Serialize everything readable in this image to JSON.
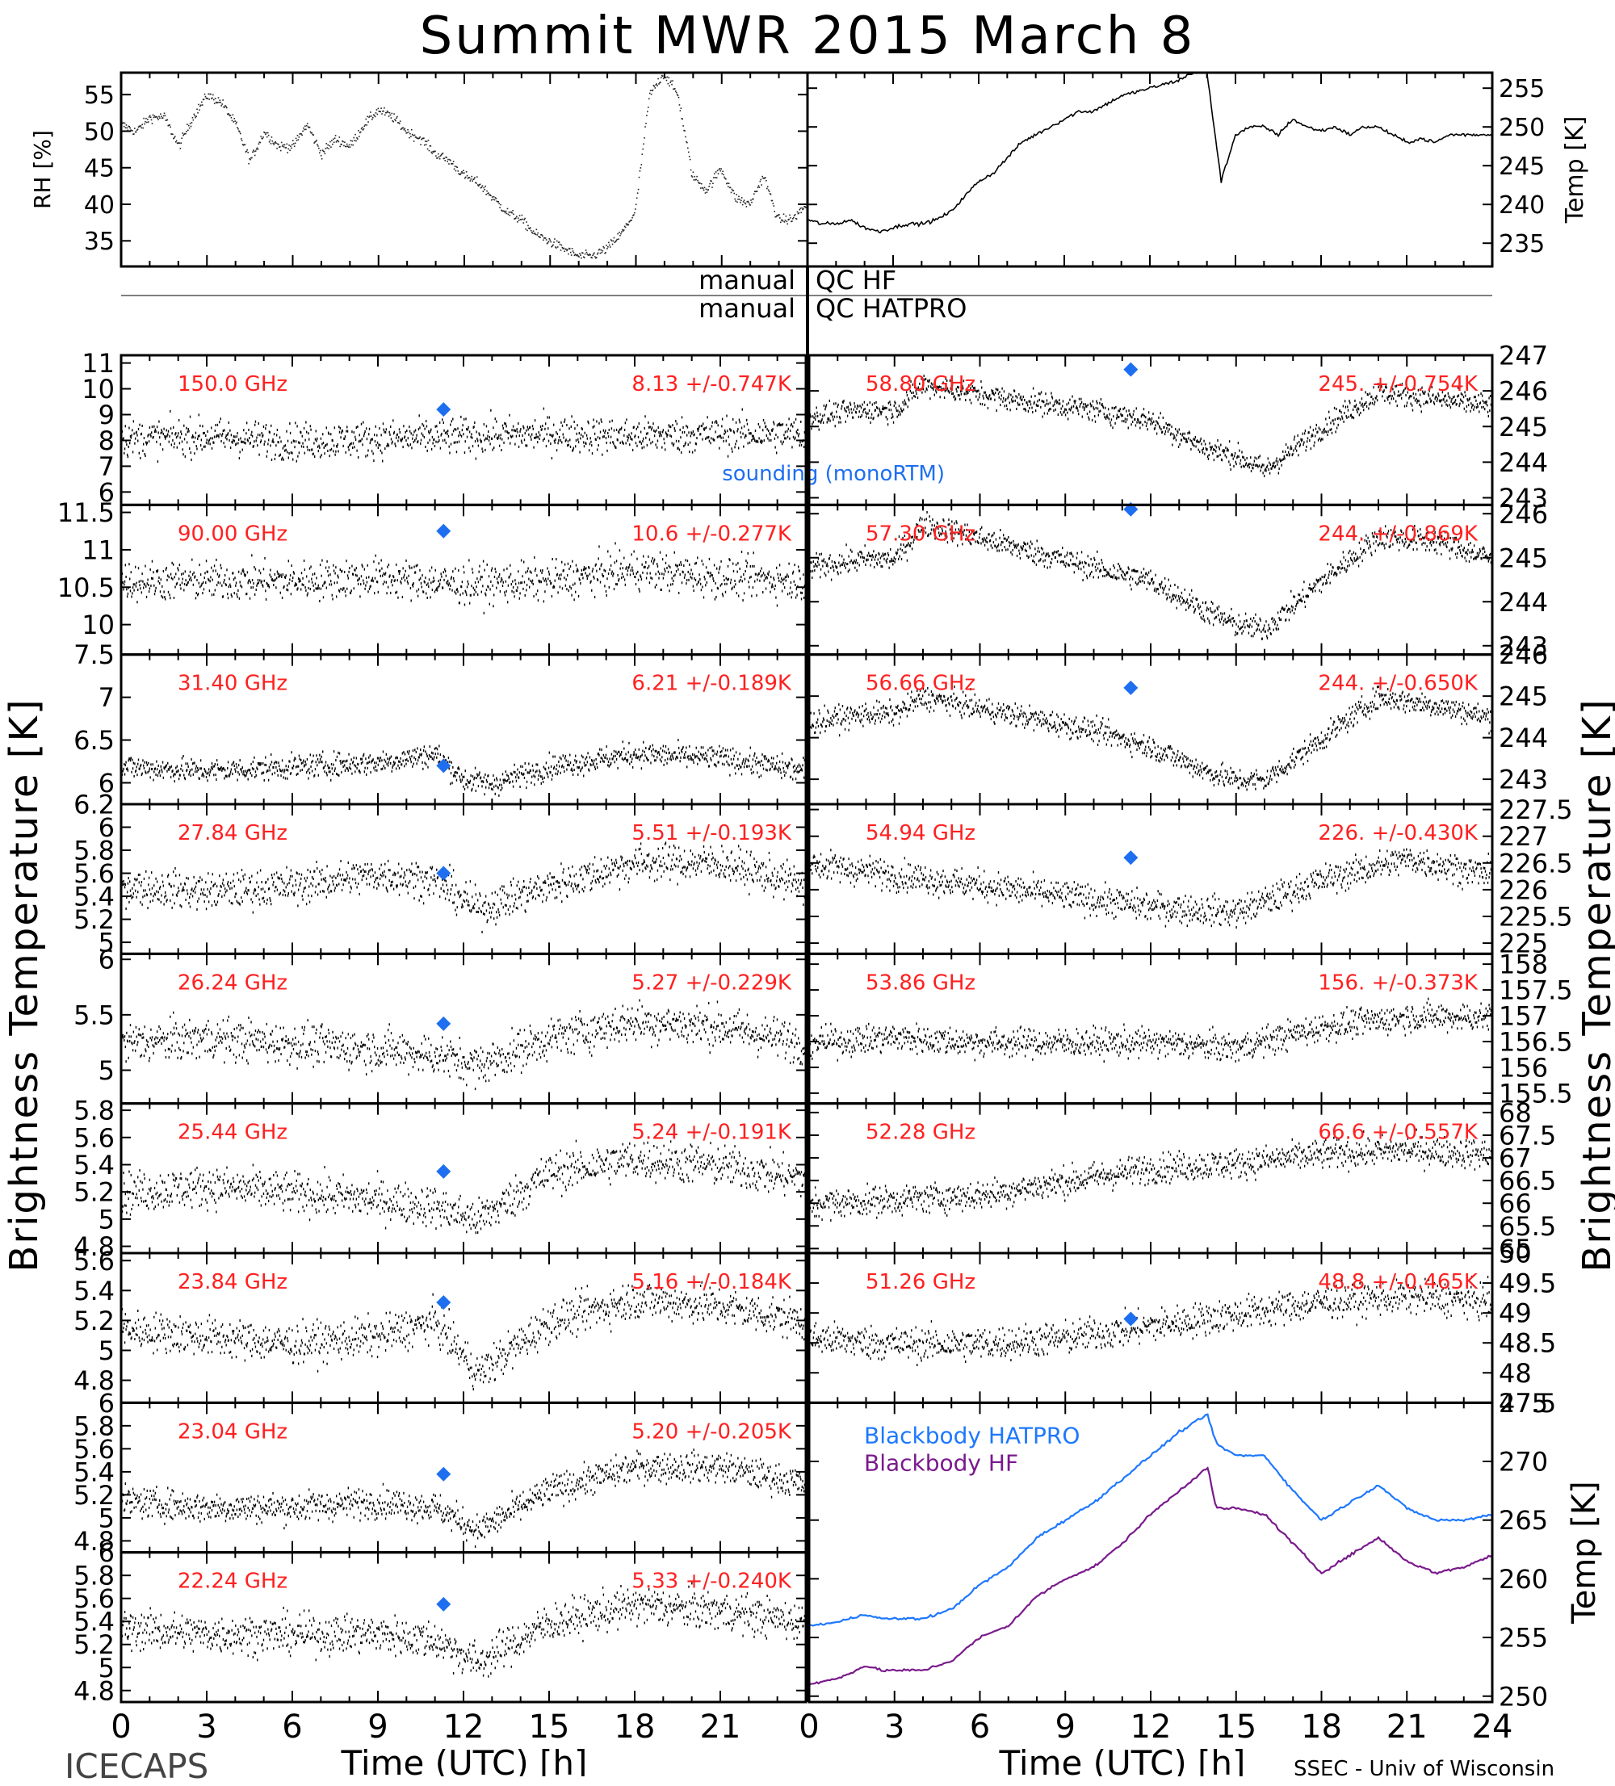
{
  "page": {
    "title": "Summit MWR 2015 March  8",
    "footer_left": "ICECAPS",
    "footer_right": "SSEC - Univ of Wisconsin",
    "qc_left": "manual",
    "qc_right_hf": "QC HF",
    "qc_right_hatpro": "QC HATPRO",
    "left_ylabel": "Brightness Temperature [K]",
    "right_ylabel": "Brightness Temperature [K]",
    "xlabel": "Time (UTC) [h]",
    "sounding_label": "sounding (monoRTM)",
    "colors": {
      "data": "#000000",
      "label": "#ff2020",
      "sounding": "#1e6ff0",
      "bb_hatpro": "#1e78ff",
      "bb_hf": "#7a1a8c"
    }
  },
  "chart_data": [
    {
      "type": "line",
      "panel": "rh",
      "ylabel": "RH [%]",
      "ylim": [
        31.5,
        58
      ],
      "yticks": [
        35,
        40,
        45,
        50,
        55
      ],
      "xlim": [
        0,
        24
      ],
      "x": [
        0,
        0.5,
        1,
        1.5,
        2,
        2.5,
        3,
        3.5,
        4,
        4.5,
        5,
        5.5,
        6,
        6.5,
        7,
        7.5,
        8,
        8.5,
        9,
        9.5,
        10,
        10.5,
        11,
        11.5,
        12,
        12.5,
        13,
        13.5,
        14,
        14.5,
        15,
        15.5,
        16,
        16.5,
        17,
        17.5,
        18,
        18.5,
        19,
        19.5,
        20,
        20.5,
        21,
        21.5,
        22,
        22.5,
        23,
        23.5,
        24
      ],
      "y": [
        51,
        50,
        52,
        52,
        48,
        52,
        55,
        54,
        51,
        46,
        50,
        48,
        48,
        51,
        47,
        49,
        48,
        51,
        53,
        52,
        50,
        49,
        47,
        46,
        44,
        43,
        41,
        39,
        38,
        36,
        35,
        34,
        33,
        33,
        34,
        36,
        39,
        55,
        58,
        55,
        44,
        42,
        45,
        41,
        40,
        44,
        38,
        38,
        40
      ]
    },
    {
      "type": "line",
      "panel": "temp",
      "ylabel": "Temp [K]",
      "ylim": [
        232,
        257
      ],
      "yticks": [
        235,
        240,
        245,
        250,
        255
      ],
      "xlim": [
        0,
        24
      ],
      "x": [
        0,
        0.5,
        1,
        1.5,
        2,
        2.5,
        3,
        3.5,
        4,
        4.5,
        5,
        5.5,
        6,
        6.5,
        7,
        7.5,
        8,
        8.5,
        9,
        9.5,
        10,
        10.5,
        11,
        11.5,
        12,
        12.5,
        13,
        13.5,
        14,
        14.5,
        15,
        15.5,
        16,
        16.5,
        17,
        17.5,
        18,
        18.5,
        19,
        19.5,
        20,
        20.5,
        21,
        21.5,
        22,
        22.5,
        23,
        23.5,
        24
      ],
      "y": [
        238,
        237.5,
        237.5,
        238,
        237,
        236.5,
        237,
        237.5,
        237.5,
        238,
        239,
        241,
        243,
        244,
        246,
        248,
        249,
        250,
        251,
        252,
        252,
        253,
        254,
        254.5,
        255,
        255.5,
        256,
        257,
        257,
        243,
        249,
        250,
        250,
        249,
        251,
        250,
        249.5,
        250,
        249,
        250,
        250,
        249,
        248,
        248.5,
        248,
        249,
        249,
        249,
        249
      ]
    },
    {
      "type": "scatter",
      "panel": "150.0",
      "freq_label": "150.0 GHz",
      "stats": "8.13 +/-0.747K",
      "ylim": [
        5.5,
        11.3
      ],
      "yticks": [
        6,
        7,
        8,
        9,
        10,
        11
      ],
      "sounding": [
        11.3,
        9.2
      ],
      "noise": 0.75,
      "x": [
        0,
        3,
        6,
        9,
        12,
        15,
        18,
        21,
        24
      ],
      "y": [
        8.1,
        8.2,
        8.0,
        8.1,
        8.2,
        8.3,
        8.2,
        8.3,
        8.3
      ]
    },
    {
      "type": "scatter",
      "panel": "90.00",
      "freq_label": "90.00 GHz",
      "stats": "10.6 +/-0.277K",
      "ylim": [
        9.6,
        11.6
      ],
      "yticks": [
        10.0,
        10.5,
        11.0,
        11.5
      ],
      "sounding": [
        11.3,
        11.25
      ],
      "noise": 0.28,
      "x": [
        0,
        3,
        6,
        9,
        12,
        15,
        18,
        21,
        24
      ],
      "y": [
        10.6,
        10.6,
        10.6,
        10.65,
        10.55,
        10.6,
        10.75,
        10.65,
        10.6
      ]
    },
    {
      "type": "scatter",
      "panel": "31.40",
      "freq_label": "31.40 GHz",
      "stats": "6.21 +/-0.189K",
      "ylim": [
        5.75,
        7.5
      ],
      "yticks": [
        6.0,
        6.5,
        7.0,
        7.5
      ],
      "sounding": [
        11.3,
        6.2
      ],
      "noise": 0.15,
      "x": [
        0,
        3,
        6,
        9,
        11,
        12,
        13,
        15,
        18,
        21,
        24
      ],
      "y": [
        6.2,
        6.15,
        6.2,
        6.25,
        6.35,
        6.05,
        6.0,
        6.2,
        6.35,
        6.3,
        6.15
      ]
    },
    {
      "type": "scatter",
      "panel": "27.84",
      "freq_label": "27.84 GHz",
      "stats": "5.51 +/-0.193K",
      "ylim": [
        4.9,
        6.2
      ],
      "yticks": [
        5.0,
        5.2,
        5.4,
        5.6,
        5.8,
        6.0,
        6.2
      ],
      "sounding": [
        11.3,
        5.6
      ],
      "noise": 0.17,
      "x": [
        0,
        3,
        6,
        9,
        11,
        12.5,
        15,
        18,
        21,
        24
      ],
      "y": [
        5.5,
        5.45,
        5.5,
        5.6,
        5.55,
        5.3,
        5.5,
        5.7,
        5.7,
        5.5
      ]
    },
    {
      "type": "scatter",
      "panel": "26.24",
      "freq_label": "26.24 GHz",
      "stats": "5.27 +/-0.229K",
      "ylim": [
        4.7,
        6.05
      ],
      "yticks": [
        5.0,
        5.5,
        6.0
      ],
      "sounding": [
        11.3,
        5.42
      ],
      "noise": 0.2,
      "x": [
        0,
        3,
        6,
        9,
        11,
        12.5,
        15,
        18,
        21,
        24
      ],
      "y": [
        5.25,
        5.3,
        5.25,
        5.2,
        5.15,
        5.05,
        5.3,
        5.45,
        5.4,
        5.25
      ]
    },
    {
      "type": "scatter",
      "panel": "25.44",
      "freq_label": "25.44 GHz",
      "stats": "5.24 +/-0.191K",
      "ylim": [
        4.75,
        5.85
      ],
      "yticks": [
        4.8,
        5.0,
        5.2,
        5.4,
        5.6,
        5.8
      ],
      "sounding": [
        11.3,
        5.35
      ],
      "noise": 0.16,
      "x": [
        0,
        3,
        6,
        9,
        11,
        12.5,
        15,
        18,
        21,
        24
      ],
      "y": [
        5.2,
        5.25,
        5.2,
        5.15,
        5.1,
        5.0,
        5.35,
        5.45,
        5.4,
        5.3
      ]
    },
    {
      "type": "scatter",
      "panel": "23.84",
      "freq_label": "23.84 GHz",
      "stats": "5.16 +/-0.184K",
      "ylim": [
        4.65,
        5.65
      ],
      "yticks": [
        4.8,
        5.0,
        5.2,
        5.4,
        5.6
      ],
      "sounding": [
        11.3,
        5.32
      ],
      "noise": 0.14,
      "x": [
        0,
        3,
        6,
        9,
        11,
        12.5,
        15,
        18,
        21,
        24
      ],
      "y": [
        5.15,
        5.1,
        5.05,
        5.1,
        5.2,
        4.85,
        5.2,
        5.35,
        5.3,
        5.2
      ]
    },
    {
      "type": "scatter",
      "panel": "23.04",
      "freq_label": "23.04 GHz",
      "stats": "5.20 +/-0.205K",
      "ylim": [
        4.7,
        6.0
      ],
      "yticks": [
        4.8,
        5.0,
        5.2,
        5.4,
        5.6,
        5.8,
        6.0
      ],
      "sounding": [
        11.3,
        5.38
      ],
      "noise": 0.14,
      "x": [
        0,
        3,
        6,
        9,
        11,
        12.5,
        15,
        18,
        21,
        24
      ],
      "y": [
        5.15,
        5.1,
        5.1,
        5.15,
        5.1,
        4.9,
        5.25,
        5.45,
        5.45,
        5.3
      ]
    },
    {
      "type": "scatter",
      "panel": "22.24",
      "freq_label": "22.24 GHz",
      "stats": "5.33 +/-0.240K",
      "ylim": [
        4.7,
        6.0
      ],
      "yticks": [
        4.8,
        5.0,
        5.2,
        5.4,
        5.6,
        5.8,
        6.0
      ],
      "sounding": [
        11.3,
        5.55
      ],
      "noise": 0.18,
      "x": [
        0,
        3,
        6,
        9,
        11,
        12.5,
        15,
        18,
        21,
        24
      ],
      "y": [
        5.35,
        5.3,
        5.3,
        5.3,
        5.25,
        5.05,
        5.4,
        5.55,
        5.5,
        5.4
      ]
    },
    {
      "type": "scatter",
      "panel": "58.80",
      "freq_label": "58.80 GHz",
      "stats": "245. +/-0.754K",
      "ylim": [
        242.8,
        247
      ],
      "yticks": [
        243,
        244,
        245,
        246,
        247
      ],
      "sounding": [
        11.3,
        246.6
      ],
      "noise": 0.35,
      "x": [
        0,
        2,
        3,
        4,
        7,
        10,
        12,
        14,
        15,
        16,
        18,
        20,
        22,
        24
      ],
      "y": [
        245.3,
        245.5,
        245.5,
        246.2,
        245.8,
        245.5,
        245.2,
        244.4,
        244.2,
        243.8,
        245.0,
        246.0,
        245.8,
        245.6
      ]
    },
    {
      "type": "scatter",
      "panel": "57.30",
      "freq_label": "57.30 GHz",
      "stats": "244. +/-0.869K",
      "ylim": [
        242.8,
        246.2
      ],
      "yticks": [
        243,
        244,
        245,
        246
      ],
      "sounding": [
        11.3,
        246.1
      ],
      "noise": 0.3,
      "x": [
        0,
        2,
        3,
        4,
        7,
        10,
        12,
        14,
        15,
        16,
        18,
        20,
        22,
        24
      ],
      "y": [
        244.8,
        245.0,
        245.0,
        245.8,
        245.3,
        244.8,
        244.5,
        243.8,
        243.5,
        243.4,
        244.5,
        245.5,
        245.4,
        245.0
      ]
    },
    {
      "type": "scatter",
      "panel": "56.66",
      "freq_label": "56.66 GHz",
      "stats": "244. +/-0.650K",
      "ylim": [
        242.4,
        246
      ],
      "yticks": [
        243,
        244,
        245,
        246
      ],
      "sounding": [
        11.3,
        245.2
      ],
      "noise": 0.3,
      "x": [
        0,
        2,
        3,
        4,
        7,
        10,
        12,
        14,
        15,
        16,
        18,
        20,
        22,
        24
      ],
      "y": [
        244.4,
        244.6,
        244.6,
        245.0,
        244.6,
        244.2,
        243.8,
        243.2,
        243.0,
        243.0,
        244.0,
        245.0,
        244.8,
        244.5
      ]
    },
    {
      "type": "scatter",
      "panel": "54.94",
      "freq_label": "54.94 GHz",
      "stats": "226. +/-0.430K",
      "ylim": [
        224.8,
        227.6
      ],
      "yticks": [
        225.0,
        225.5,
        226.0,
        226.5,
        227.0,
        227.5
      ],
      "sounding": [
        11.3,
        226.6
      ],
      "noise": 0.3,
      "x": [
        0,
        3,
        6,
        9,
        12,
        15,
        18,
        21,
        24
      ],
      "y": [
        226.5,
        226.3,
        226.1,
        225.9,
        225.7,
        225.6,
        226.2,
        226.6,
        226.3
      ]
    },
    {
      "type": "scatter",
      "panel": "53.86",
      "freq_label": "53.86 GHz",
      "stats": "156. +/-0.373K",
      "ylim": [
        155.3,
        158.2
      ],
      "yticks": [
        155.5,
        156.0,
        156.5,
        157.0,
        157.5,
        158.0
      ],
      "sounding": null,
      "noise": 0.3,
      "x": [
        0,
        3,
        6,
        9,
        12,
        15,
        18,
        21,
        24
      ],
      "y": [
        156.5,
        156.6,
        156.5,
        156.5,
        156.5,
        156.4,
        156.8,
        157.0,
        157.0
      ]
    },
    {
      "type": "scatter",
      "panel": "52.28",
      "freq_label": "52.28 GHz",
      "stats": "66.6 +/-0.557K",
      "ylim": [
        64.9,
        68.2
      ],
      "yticks": [
        65.0,
        65.5,
        66.0,
        66.5,
        67.0,
        67.5,
        68.0
      ],
      "sounding": null,
      "noise": 0.35,
      "x": [
        0,
        3,
        6,
        9,
        12,
        15,
        18,
        21,
        24
      ],
      "y": [
        66.0,
        66.1,
        66.2,
        66.5,
        66.8,
        66.9,
        67.1,
        67.2,
        67.1
      ]
    },
    {
      "type": "scatter",
      "panel": "51.26",
      "freq_label": "51.26 GHz",
      "stats": "48.8 +/-0.465K",
      "ylim": [
        47.5,
        50
      ],
      "yticks": [
        47.5,
        48.0,
        48.5,
        49.0,
        49.5,
        50.0
      ],
      "sounding": [
        11.3,
        48.9
      ],
      "noise": 0.3,
      "x": [
        0,
        3,
        6,
        9,
        12,
        15,
        18,
        21,
        24
      ],
      "y": [
        48.6,
        48.5,
        48.5,
        48.6,
        48.8,
        49.0,
        49.2,
        49.3,
        49.2
      ]
    },
    {
      "type": "line",
      "panel": "blackbody",
      "ylabel": "Temp [K]",
      "ylim": [
        249.5,
        275
      ],
      "yticks": [
        250,
        255,
        260,
        265,
        270,
        275
      ],
      "xlim": [
        0,
        24
      ],
      "series": [
        {
          "name": "Blackbody HATPRO",
          "x": [
            0,
            1,
            2,
            2.5,
            3,
            4,
            5,
            6,
            7,
            8,
            9,
            10,
            11,
            12,
            13,
            14,
            14.3,
            15,
            16,
            17,
            18,
            19,
            20,
            21,
            22,
            23,
            24
          ],
          "y": [
            256,
            256.3,
            257,
            256.6,
            256.6,
            256.6,
            257.4,
            259.5,
            261,
            263.5,
            265,
            266.5,
            268.5,
            270.5,
            272.5,
            274,
            271.5,
            270.5,
            270.5,
            267.5,
            265,
            266.5,
            268,
            266,
            265,
            265,
            265.5
          ]
        },
        {
          "name": "Blackbody HF",
          "x": [
            0,
            1,
            2,
            2.5,
            3,
            4,
            5,
            6,
            7,
            8,
            9,
            10,
            11,
            12,
            13,
            14,
            14.3,
            15,
            16,
            17,
            18,
            19,
            20,
            21,
            22,
            23,
            24
          ],
          "y": [
            251,
            251.5,
            252.6,
            252.2,
            252.2,
            252.2,
            253,
            255,
            256,
            258.5,
            260,
            261,
            263,
            265.5,
            267.5,
            269.5,
            266,
            266,
            265.5,
            263,
            260.5,
            262,
            263.5,
            261.5,
            260.5,
            261,
            262
          ]
        }
      ]
    }
  ]
}
